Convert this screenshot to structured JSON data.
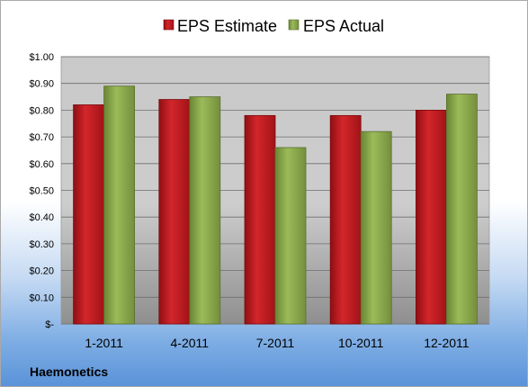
{
  "chart_data": {
    "type": "bar",
    "title": "",
    "xlabel": "",
    "ylabel": "",
    "categories": [
      "1-2011",
      "4-2011",
      "7-2011",
      "10-2011",
      "12-2011"
    ],
    "series": [
      {
        "name": "EPS Estimate",
        "color": "#c0161c",
        "values": [
          0.82,
          0.84,
          0.78,
          0.78,
          0.8
        ]
      },
      {
        "name": "EPS Actual",
        "color": "#8aa84a",
        "values": [
          0.89,
          0.85,
          0.66,
          0.72,
          0.86
        ]
      }
    ],
    "ylim": [
      0,
      1.0
    ],
    "ytick_values": [
      0,
      0.1,
      0.2,
      0.3,
      0.4,
      0.5,
      0.6,
      0.7,
      0.8,
      0.9,
      1.0
    ],
    "ytick_labels": [
      "$-",
      "$0.10",
      "$0.20",
      "$0.30",
      "$0.40",
      "$0.50",
      "$0.60",
      "$0.70",
      "$0.80",
      "$0.90",
      "$1.00"
    ],
    "grid": true,
    "legend_position": "top-center"
  },
  "footer": {
    "company": "Haemonetics"
  }
}
